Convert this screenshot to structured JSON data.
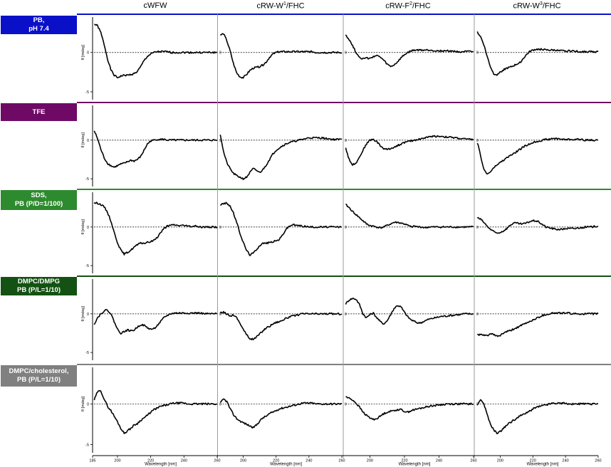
{
  "columns": [
    {
      "base": "cWFW",
      "sup": "",
      "tail": ""
    },
    {
      "base": "cRW-W",
      "sup": "1",
      "tail": "/FHC"
    },
    {
      "base": "cRW-F",
      "sup": "2",
      "tail": "/FHC"
    },
    {
      "base": "cRW-W",
      "sup": "3",
      "tail": "/FHC"
    }
  ],
  "rows": [
    {
      "line1": "PB,",
      "line2": "pH 7.4",
      "color": "#0a10c8"
    },
    {
      "line1": "TFE",
      "line2": "",
      "color": "#6e0a66"
    },
    {
      "line1": "SDS,",
      "line2": "PB (P/D=1/100)",
      "color": "#2e8a2e"
    },
    {
      "line1": "DMPC/DMPG",
      "line2": "PB (P/L=1/10)",
      "color": "#145214"
    },
    {
      "line1": "DMPC/cholesterol,",
      "line2": "PB (P/L=1/10)",
      "color": "#808080"
    }
  ],
  "axis": {
    "ylabel": "θ [mdeg]",
    "xlabel": "Wavelength [nm]",
    "yticks": [
      "0",
      "-5"
    ],
    "xticks": [
      "185",
      "200",
      "220",
      "240",
      "260"
    ]
  },
  "chart_data": {
    "type": "line",
    "xlim": [
      185,
      260
    ],
    "ylim": [
      -6,
      4.5
    ],
    "x_unit": "nm",
    "y_unit": "mdeg",
    "x": [
      186,
      188,
      190,
      192,
      194,
      196,
      198,
      200,
      202,
      204,
      206,
      208,
      210,
      212,
      214,
      216,
      218,
      220,
      222,
      224,
      226,
      228,
      230,
      232,
      234,
      236,
      238,
      240,
      242,
      244,
      246,
      248,
      250,
      252,
      254,
      256,
      258,
      260
    ],
    "panels": [
      {
        "row": 0,
        "col": 0,
        "y": [
          3.6,
          3.4,
          2.5,
          1.0,
          -0.8,
          -2.2,
          -2.9,
          -3.2,
          -3.0,
          -2.9,
          -2.9,
          -2.8,
          -2.7,
          -2.4,
          -1.8,
          -1.0,
          -0.5,
          -0.2,
          0.0,
          0.1,
          0.1,
          0.1,
          0.1,
          0.0,
          0.0,
          0.0,
          0.0,
          0.0,
          0.0,
          0.0,
          0.0,
          0.0,
          0.0,
          0.0,
          0.0,
          0.0,
          0.0,
          0.0
        ]
      },
      {
        "row": 0,
        "col": 1,
        "y": [
          2.2,
          2.4,
          1.5,
          0.2,
          -1.4,
          -2.6,
          -3.1,
          -3.2,
          -2.8,
          -2.3,
          -2.0,
          -1.9,
          -1.8,
          -1.6,
          -1.2,
          -0.6,
          -0.2,
          0.0,
          0.1,
          0.1,
          0.1,
          0.1,
          0.1,
          0.1,
          0.1,
          0.1,
          0.1,
          0.1,
          0.1,
          0.0,
          0.0,
          0.0,
          0.0,
          0.0,
          0.0,
          0.0,
          0.0,
          0.0
        ]
      },
      {
        "row": 0,
        "col": 2,
        "y": [
          2.3,
          1.6,
          0.9,
          0.0,
          -0.6,
          -0.8,
          -0.7,
          -0.8,
          -0.5,
          -0.4,
          -0.6,
          -1.0,
          -1.5,
          -1.8,
          -1.6,
          -1.2,
          -0.7,
          -0.3,
          0.0,
          0.2,
          0.3,
          0.3,
          0.3,
          0.3,
          0.3,
          0.3,
          0.2,
          0.2,
          0.2,
          0.2,
          0.2,
          0.2,
          0.1,
          0.1,
          0.1,
          0.1,
          0.1,
          0.1
        ]
      },
      {
        "row": 0,
        "col": 3,
        "y": [
          2.6,
          2.0,
          1.0,
          -0.5,
          -1.8,
          -2.7,
          -2.8,
          -2.5,
          -2.2,
          -2.0,
          -1.9,
          -1.7,
          -1.5,
          -1.3,
          -0.8,
          -0.3,
          0.1,
          0.3,
          0.4,
          0.4,
          0.4,
          0.3,
          0.3,
          0.3,
          0.3,
          0.2,
          0.2,
          0.2,
          0.2,
          0.2,
          0.2,
          0.1,
          0.1,
          0.1,
          0.1,
          0.1,
          0.1,
          0.1
        ]
      },
      {
        "row": 1,
        "col": 0,
        "y": [
          1.2,
          0.2,
          -1.2,
          -2.3,
          -3.0,
          -3.3,
          -3.5,
          -3.3,
          -3.1,
          -3.0,
          -2.8,
          -2.6,
          -2.7,
          -2.5,
          -2.1,
          -1.3,
          -0.5,
          -0.1,
          0.0,
          0.1,
          0.1,
          0.1,
          0.0,
          0.0,
          0.0,
          0.0,
          0.0,
          0.0,
          0.0,
          0.0,
          0.0,
          0.0,
          0.0,
          0.0,
          0.0,
          0.0,
          0.0,
          0.0
        ]
      },
      {
        "row": 1,
        "col": 1,
        "y": [
          0.8,
          -1.5,
          -2.9,
          -3.7,
          -4.3,
          -4.6,
          -4.8,
          -5.0,
          -4.8,
          -4.2,
          -3.7,
          -3.9,
          -4.2,
          -3.8,
          -3.2,
          -2.5,
          -1.8,
          -1.3,
          -1.0,
          -0.7,
          -0.5,
          -0.3,
          -0.2,
          -0.1,
          0.0,
          0.1,
          0.2,
          0.3,
          0.3,
          0.3,
          0.3,
          0.3,
          0.2,
          0.2,
          0.1,
          0.1,
          0.1,
          0.1
        ]
      },
      {
        "row": 1,
        "col": 2,
        "y": [
          -1.0,
          -2.5,
          -3.2,
          -2.9,
          -2.2,
          -1.3,
          -0.5,
          0.0,
          0.1,
          -0.2,
          -0.7,
          -1.1,
          -1.2,
          -1.1,
          -0.9,
          -0.7,
          -0.5,
          -0.3,
          -0.2,
          -0.1,
          0.0,
          0.1,
          0.2,
          0.3,
          0.4,
          0.5,
          0.5,
          0.5,
          0.5,
          0.4,
          0.4,
          0.3,
          0.3,
          0.2,
          0.2,
          0.1,
          0.1,
          0.1
        ]
      },
      {
        "row": 1,
        "col": 3,
        "y": [
          -0.3,
          -2.0,
          -3.8,
          -4.4,
          -4.1,
          -3.6,
          -3.2,
          -2.9,
          -2.6,
          -2.3,
          -2.0,
          -1.8,
          -1.5,
          -1.2,
          -0.9,
          -0.7,
          -0.5,
          -0.3,
          -0.2,
          -0.1,
          0.0,
          0.1,
          0.1,
          0.2,
          0.2,
          0.2,
          0.1,
          0.1,
          0.1,
          0.1,
          0.1,
          0.1,
          0.1,
          0.0,
          0.0,
          0.0,
          0.0,
          0.0
        ]
      },
      {
        "row": 2,
        "col": 0,
        "y": [
          3.1,
          3.1,
          2.9,
          2.6,
          1.9,
          0.8,
          -0.7,
          -2.0,
          -3.0,
          -3.5,
          -3.3,
          -3.0,
          -2.6,
          -2.3,
          -2.1,
          -2.1,
          -2.0,
          -1.9,
          -1.7,
          -1.3,
          -0.7,
          -0.2,
          0.1,
          0.2,
          0.3,
          0.2,
          0.2,
          0.2,
          0.1,
          0.1,
          0.1,
          0.1,
          0.0,
          0.0,
          0.0,
          0.0,
          0.0,
          0.0
        ]
      },
      {
        "row": 2,
        "col": 1,
        "y": [
          2.9,
          3.0,
          3.1,
          2.7,
          1.8,
          0.6,
          -0.8,
          -2.0,
          -3.0,
          -3.6,
          -3.4,
          -2.9,
          -2.4,
          -2.1,
          -2.1,
          -2.0,
          -1.9,
          -1.8,
          -1.6,
          -1.0,
          -0.3,
          0.1,
          0.3,
          0.2,
          0.2,
          0.1,
          0.1,
          0.0,
          0.0,
          0.0,
          0.0,
          0.0,
          0.0,
          0.0,
          0.0,
          0.0,
          0.0,
          0.0
        ]
      },
      {
        "row": 2,
        "col": 2,
        "y": [
          2.9,
          2.5,
          2.0,
          1.6,
          1.2,
          0.8,
          0.4,
          0.2,
          0.1,
          0.0,
          -0.1,
          0.0,
          0.2,
          0.4,
          0.6,
          0.6,
          0.5,
          0.4,
          0.2,
          0.0,
          0.1,
          0.0,
          0.0,
          -0.1,
          0.0,
          0.0,
          0.0,
          0.0,
          0.0,
          0.0,
          0.0,
          0.0,
          0.0,
          0.0,
          0.0,
          0.0,
          0.0,
          0.0
        ]
      },
      {
        "row": 2,
        "col": 3,
        "y": [
          1.2,
          1.0,
          0.6,
          0.1,
          -0.3,
          -0.6,
          -0.8,
          -0.7,
          -0.5,
          -0.2,
          0.2,
          0.5,
          0.5,
          0.4,
          0.4,
          0.5,
          0.7,
          0.8,
          0.8,
          0.6,
          0.3,
          0.0,
          -0.1,
          -0.2,
          -0.3,
          -0.3,
          -0.3,
          -0.2,
          -0.2,
          -0.2,
          -0.2,
          -0.1,
          -0.1,
          0.0,
          0.0,
          0.0,
          0.1,
          0.1
        ]
      },
      {
        "row": 3,
        "col": 0,
        "y": [
          -1.3,
          -0.5,
          0.0,
          0.4,
          0.5,
          0.0,
          -1.0,
          -2.0,
          -2.5,
          -2.3,
          -2.1,
          -2.2,
          -2.1,
          -1.7,
          -1.4,
          -1.5,
          -1.8,
          -2.0,
          -1.9,
          -1.5,
          -1.0,
          -0.5,
          -0.2,
          0.0,
          0.1,
          0.1,
          0.1,
          0.1,
          0.1,
          0.1,
          0.1,
          0.1,
          0.1,
          0.0,
          0.0,
          0.0,
          0.0,
          0.0
        ]
      },
      {
        "row": 3,
        "col": 1,
        "y": [
          0.1,
          0.2,
          0.0,
          -0.3,
          -0.1,
          -0.5,
          -1.2,
          -2.0,
          -2.7,
          -3.2,
          -3.3,
          -3.0,
          -2.6,
          -2.2,
          -1.8,
          -1.6,
          -1.3,
          -1.1,
          -1.0,
          -0.8,
          -0.6,
          -0.4,
          -0.3,
          -0.2,
          -0.1,
          0.0,
          0.0,
          0.0,
          0.0,
          0.0,
          0.0,
          0.0,
          0.0,
          0.0,
          0.0,
          0.0,
          0.0,
          0.0
        ]
      },
      {
        "row": 3,
        "col": 2,
        "y": [
          1.3,
          1.8,
          2.0,
          1.9,
          1.2,
          0.0,
          -0.5,
          -0.1,
          0.1,
          -0.5,
          -1.0,
          -1.3,
          -0.9,
          -0.1,
          0.7,
          1.1,
          0.9,
          0.2,
          -0.4,
          -0.8,
          -1.0,
          -1.2,
          -1.1,
          -0.9,
          -0.7,
          -0.6,
          -0.5,
          -0.4,
          -0.3,
          -0.3,
          -0.2,
          -0.2,
          -0.1,
          -0.1,
          0.0,
          0.0,
          0.0,
          0.0
        ]
      },
      {
        "row": 3,
        "col": 3,
        "y": [
          -2.7,
          -2.7,
          -2.8,
          -2.8,
          -2.6,
          -2.7,
          -2.9,
          -2.8,
          -2.5,
          -2.3,
          -2.2,
          -2.0,
          -1.8,
          -1.6,
          -1.4,
          -1.2,
          -1.0,
          -0.8,
          -0.6,
          -0.4,
          -0.2,
          -0.1,
          0.0,
          0.1,
          0.1,
          0.1,
          0.1,
          0.1,
          0.1,
          0.0,
          0.0,
          0.0,
          0.0,
          0.0,
          0.0,
          0.0,
          0.0,
          0.0
        ]
      },
      {
        "row": 4,
        "col": 0,
        "y": [
          0.5,
          1.5,
          1.6,
          0.6,
          -0.3,
          -0.8,
          -1.5,
          -2.2,
          -3.0,
          -3.6,
          -3.3,
          -3.0,
          -2.6,
          -2.4,
          -2.0,
          -1.7,
          -1.4,
          -1.0,
          -0.7,
          -0.5,
          -0.3,
          -0.2,
          -0.1,
          0.0,
          0.1,
          0.1,
          0.1,
          0.1,
          0.0,
          0.0,
          0.0,
          0.0,
          0.0,
          0.0,
          0.0,
          0.0,
          0.0,
          0.0
        ]
      },
      {
        "row": 4,
        "col": 1,
        "y": [
          0.1,
          0.6,
          0.3,
          -0.6,
          -1.3,
          -1.8,
          -2.1,
          -2.3,
          -2.5,
          -2.7,
          -2.9,
          -2.6,
          -2.1,
          -1.7,
          -1.5,
          -1.2,
          -1.0,
          -0.8,
          -0.6,
          -0.5,
          -0.4,
          -0.3,
          -0.2,
          -0.1,
          0.0,
          0.1,
          0.1,
          0.1,
          0.1,
          0.0,
          0.0,
          0.0,
          0.0,
          0.0,
          0.0,
          0.0,
          0.0,
          0.0
        ]
      },
      {
        "row": 4,
        "col": 2,
        "y": [
          0.9,
          0.7,
          0.5,
          0.1,
          -0.4,
          -1.0,
          -1.4,
          -1.7,
          -1.9,
          -1.8,
          -1.5,
          -1.2,
          -1.0,
          -0.9,
          -0.8,
          -0.7,
          -0.7,
          -0.9,
          -1.0,
          -0.8,
          -0.7,
          -0.6,
          -0.5,
          -0.4,
          -0.3,
          -0.2,
          -0.2,
          -0.1,
          -0.1,
          0.0,
          0.0,
          0.0,
          0.0,
          0.0,
          0.0,
          0.0,
          0.0,
          0.0
        ]
      },
      {
        "row": 4,
        "col": 3,
        "y": [
          -0.2,
          0.6,
          0.0,
          -1.3,
          -2.5,
          -3.2,
          -3.6,
          -3.4,
          -3.0,
          -2.6,
          -2.3,
          -2.0,
          -1.8,
          -1.5,
          -1.3,
          -1.1,
          -0.9,
          -0.6,
          -0.4,
          -0.3,
          -0.2,
          -0.1,
          0.0,
          0.1,
          0.1,
          0.1,
          0.1,
          0.1,
          0.0,
          0.0,
          0.0,
          0.0,
          0.0,
          0.0,
          0.0,
          0.0,
          0.0,
          0.0
        ]
      }
    ]
  }
}
